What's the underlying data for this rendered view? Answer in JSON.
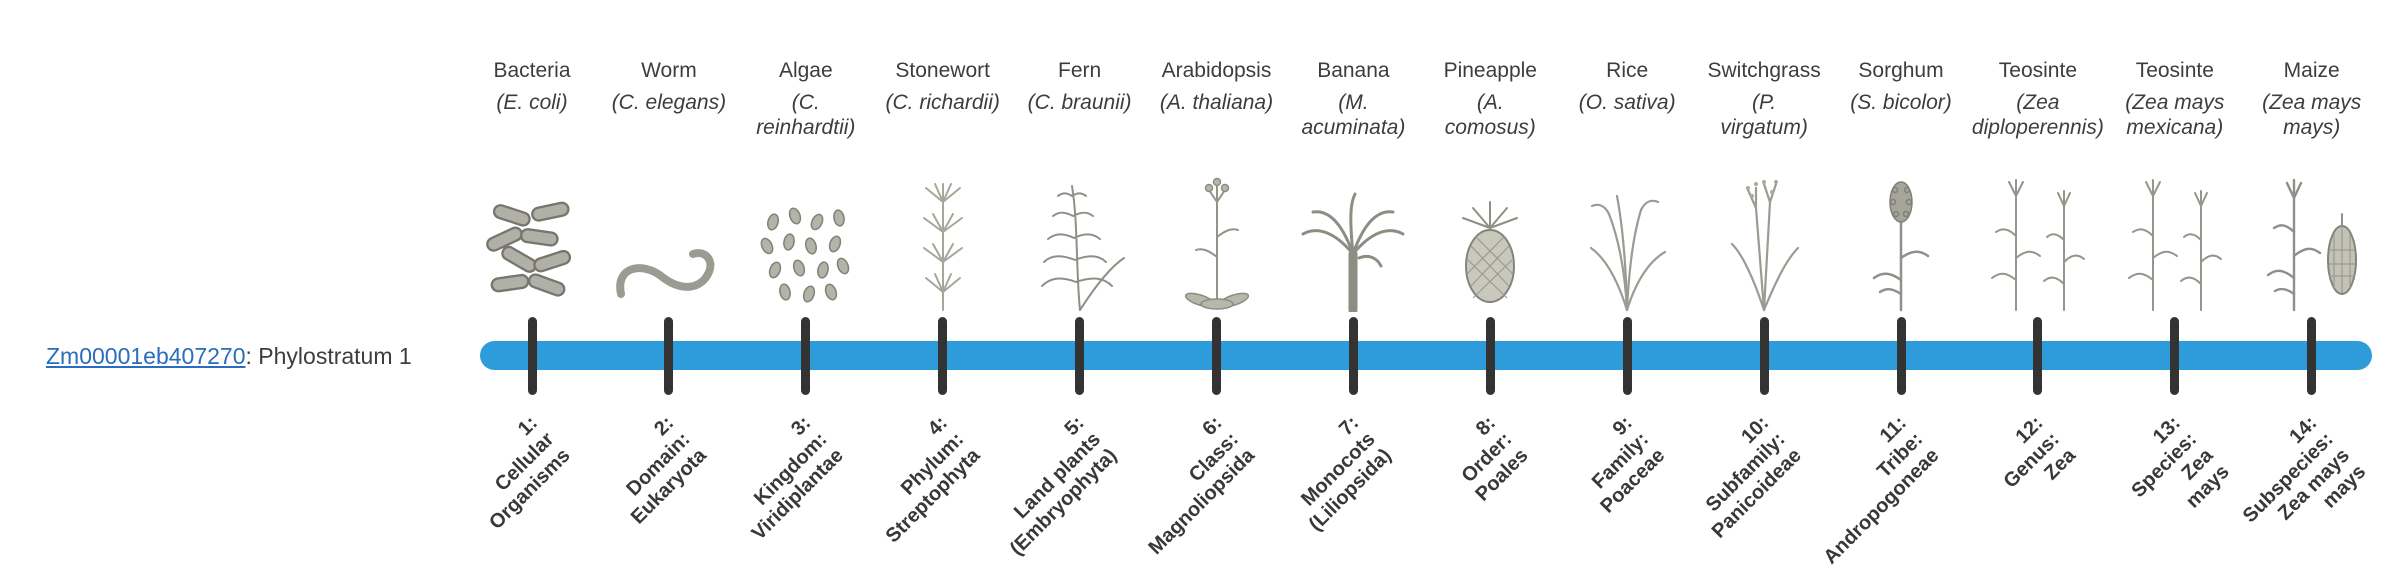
{
  "gene": {
    "id": "Zm00001eb407270",
    "label_suffix": ": Phylostratum 1"
  },
  "timeline": {
    "bar_color": "#2E9CDB",
    "tick_color": "#333333",
    "link_color": "#2A6DBD"
  },
  "strata": [
    {
      "num": "1",
      "organism": "Bacteria",
      "scientific": "(E. coli)",
      "icon": "bacteria",
      "label_lines": [
        "1:",
        "Cellular",
        "Organisms"
      ]
    },
    {
      "num": "2",
      "organism": "Worm",
      "scientific": "(C. elegans)",
      "icon": "worm",
      "label_lines": [
        "2:",
        "Domain:",
        "Eukaryota"
      ]
    },
    {
      "num": "3",
      "organism": "Algae",
      "scientific": "(C.\nreinhardtii)",
      "icon": "algae",
      "label_lines": [
        "3:",
        "Kingdom:",
        "Viridiplantae"
      ]
    },
    {
      "num": "4",
      "organism": "Stonewort",
      "scientific": "(C. richardii)",
      "icon": "stonewort",
      "label_lines": [
        "4:",
        "Phylum:",
        "Streptophyta"
      ]
    },
    {
      "num": "5",
      "organism": "Fern",
      "scientific": "(C. braunii)",
      "icon": "fern",
      "label_lines": [
        "5:",
        "Land plants",
        "(Embryophyta)"
      ]
    },
    {
      "num": "6",
      "organism": "Arabidopsis",
      "scientific": "(A. thaliana)",
      "icon": "arabidopsis",
      "label_lines": [
        "6:",
        "Class:",
        "Magnoliopsida"
      ]
    },
    {
      "num": "7",
      "organism": "Banana",
      "scientific": "(M.\nacuminata)",
      "icon": "banana",
      "label_lines": [
        "7:",
        "Monocots",
        "(Liliopsida)"
      ]
    },
    {
      "num": "8",
      "organism": "Pineapple",
      "scientific": "(A.\ncomosus)",
      "icon": "pineapple",
      "label_lines": [
        "8:",
        "Order:",
        "Poales"
      ]
    },
    {
      "num": "9",
      "organism": "Rice",
      "scientific": "(O. sativa)",
      "icon": "rice",
      "label_lines": [
        "9:",
        "Family:",
        "Poaceae"
      ]
    },
    {
      "num": "10",
      "organism": "Switchgrass",
      "scientific": "(P.\nvirgatum)",
      "icon": "switchgrass",
      "label_lines": [
        "10:",
        "Subfamily:",
        "Panicoideae"
      ]
    },
    {
      "num": "11",
      "organism": "Sorghum",
      "scientific": "(S. bicolor)",
      "icon": "sorghum",
      "label_lines": [
        "11:",
        "Tribe:",
        "Andropogoneae"
      ]
    },
    {
      "num": "12",
      "organism": "Teosinte",
      "scientific": "(Zea\ndiploperennis)",
      "icon": "teosinte",
      "label_lines": [
        "12:",
        "Genus:",
        "Zea"
      ]
    },
    {
      "num": "13",
      "organism": "Teosinte",
      "scientific": "(Zea mays\nmexicana)",
      "icon": "teosinte",
      "label_lines": [
        "13:",
        "Species:",
        "Zea",
        "mays"
      ]
    },
    {
      "num": "14",
      "organism": "Maize",
      "scientific": "(Zea mays\nmays)",
      "icon": "maize",
      "label_lines": [
        "14:",
        "Subspecies:",
        "Zea mays",
        "mays"
      ]
    }
  ]
}
